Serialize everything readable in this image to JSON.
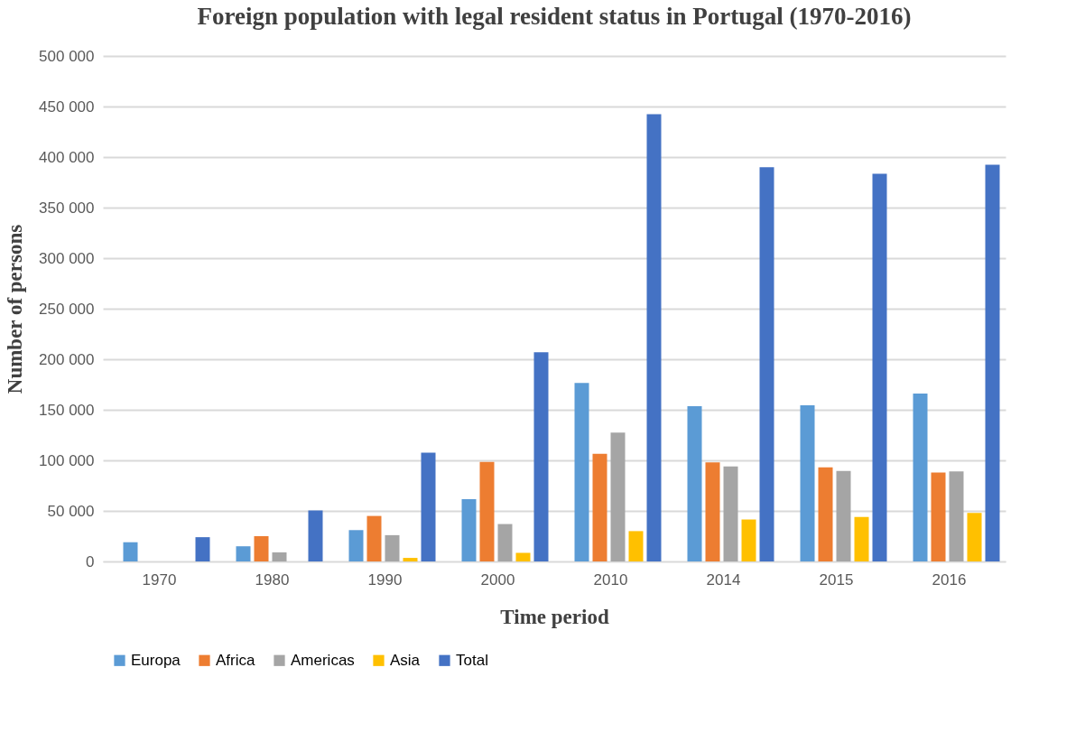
{
  "chart_data": {
    "type": "bar",
    "title": "Foreign population with legal resident status in Portugal (1970-2016)",
    "xlabel": "Time period",
    "ylabel": "Number of persons",
    "categories": [
      "1970",
      "1980",
      "1990",
      "2000",
      "2010",
      "2014",
      "2015",
      "2016"
    ],
    "series": [
      {
        "name": "Europa",
        "color": "#5b9bd5",
        "values": [
          19000,
          15000,
          31000,
          61500,
          176500,
          153500,
          154500,
          166000
        ]
      },
      {
        "name": "Africa",
        "color": "#ed7d31",
        "values": [
          null,
          25000,
          45000,
          98500,
          106500,
          98000,
          93000,
          88000
        ]
      },
      {
        "name": "Americas",
        "color": "#a5a5a5",
        "values": [
          null,
          9000,
          26000,
          37000,
          127500,
          94000,
          89500,
          89000
        ]
      },
      {
        "name": "Asia",
        "color": "#ffc000",
        "values": [
          null,
          null,
          3500,
          8500,
          30000,
          41500,
          44000,
          48000
        ]
      },
      {
        "name": "Total",
        "color": "#4472c4",
        "values": [
          24000,
          50500,
          107500,
          207000,
          442500,
          390000,
          383500,
          392500
        ]
      }
    ],
    "ylim": [
      0,
      500000
    ],
    "yticks": [
      {
        "value": 0,
        "label": "0"
      },
      {
        "value": 50000,
        "label": "50 000"
      },
      {
        "value": 100000,
        "label": "100 000"
      },
      {
        "value": 150000,
        "label": "150 000"
      },
      {
        "value": 200000,
        "label": "200 000"
      },
      {
        "value": 250000,
        "label": "250 000"
      },
      {
        "value": 300000,
        "label": "300 000"
      },
      {
        "value": 350000,
        "label": "350 000"
      },
      {
        "value": 400000,
        "label": "400 000"
      },
      {
        "value": 450000,
        "label": "450 000"
      },
      {
        "value": 500000,
        "label": "500 000"
      }
    ],
    "grid": "y",
    "legend": "bottom"
  }
}
